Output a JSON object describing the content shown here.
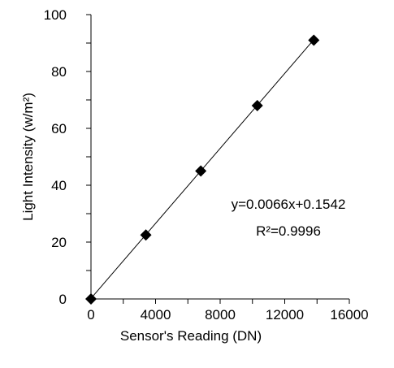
{
  "chart_data": {
    "type": "scatter",
    "x_label": "Sensor's Reading (DN)",
    "y_label": "Light Intensity (w/m²)",
    "annotations": [
      "y=0.0066x+0.1542",
      "R²=0.9996"
    ],
    "x": [
      0,
      3400,
      6800,
      10300,
      13800
    ],
    "values": [
      0,
      22.5,
      45,
      68,
      91
    ],
    "color": "#000000",
    "trendline": {
      "x": [
        0,
        13800
      ],
      "values": [
        0.2,
        91.2
      ]
    },
    "xlim": [
      0,
      16000
    ],
    "xticks": [
      0,
      4000,
      8000,
      12000,
      16000
    ],
    "x_minor_ticks": [
      2000,
      6000,
      10000,
      14000
    ],
    "ylim": [
      0,
      100
    ],
    "yticks": [
      0,
      20,
      40,
      60,
      80,
      100
    ],
    "y_minor_ticks": [
      10,
      30,
      50,
      70,
      90
    ]
  }
}
